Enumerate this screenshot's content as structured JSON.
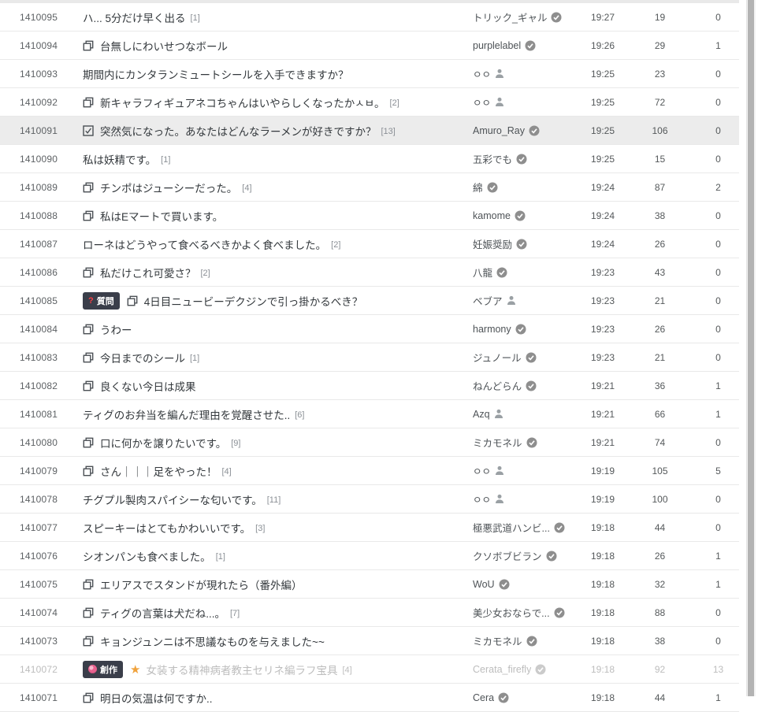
{
  "colors": {
    "highlight_row_bg": "#ececec",
    "visited_text": "#bdbdbd",
    "badge_bg": "#3a3e4a",
    "badge_question_mark": "#fb3e44",
    "star": "#f0a23c",
    "verified_badge": "#8e8e8e",
    "divider": "#e9e9e9",
    "title_text": "#33383c"
  },
  "table": {
    "rows": [
      {
        "id": "1410095",
        "icon": null,
        "badge": null,
        "star": false,
        "title": "ハ... 5分だけ早く出る",
        "count_label": "[1]",
        "author": "トリック_ギャル",
        "author_mark": "verified",
        "time": "19:27",
        "views": "19",
        "rating": "0",
        "state": "normal"
      },
      {
        "id": "1410094",
        "icon": "image",
        "badge": null,
        "star": false,
        "title": "台無しにわいせつなボール",
        "count_label": "",
        "author": "purplelabel",
        "author_mark": "verified",
        "time": "19:26",
        "views": "29",
        "rating": "1",
        "state": "normal"
      },
      {
        "id": "1410093",
        "icon": null,
        "badge": null,
        "star": false,
        "title": "期間内にカンタランミュートシールを入手できますか？",
        "count_label": "",
        "author": "ㅇㅇ",
        "author_mark": "person",
        "time": "19:25",
        "views": "23",
        "rating": "0",
        "state": "normal"
      },
      {
        "id": "1410092",
        "icon": "image",
        "badge": null,
        "star": false,
        "title": "新キャラフィギュアネコちゃんはいやらしくなったかㅅㅂ。",
        "count_label": "[2]",
        "author": "ㅇㅇ",
        "author_mark": "person",
        "time": "19:25",
        "views": "72",
        "rating": "0",
        "state": "normal"
      },
      {
        "id": "1410091",
        "icon": "checkbox",
        "badge": null,
        "star": false,
        "title": "突然気になった。あなたはどんなラーメンが好きですか？",
        "count_label": "[13]",
        "author": "Amuro_Ray",
        "author_mark": "verified",
        "time": "19:25",
        "views": "106",
        "rating": "0",
        "state": "highlighted"
      },
      {
        "id": "1410090",
        "icon": null,
        "badge": null,
        "star": false,
        "title": "私は妖精です。",
        "count_label": "[1]",
        "author": "五彩でも",
        "author_mark": "verified",
        "time": "19:25",
        "views": "15",
        "rating": "0",
        "state": "normal"
      },
      {
        "id": "1410089",
        "icon": "image",
        "badge": null,
        "star": false,
        "title": "チンポはジューシーだった。",
        "count_label": "[4]",
        "author": "綿",
        "author_mark": "verified",
        "time": "19:24",
        "views": "87",
        "rating": "2",
        "state": "normal"
      },
      {
        "id": "1410088",
        "icon": "image",
        "badge": null,
        "star": false,
        "title": "私はEマートで買います。",
        "count_label": "",
        "author": "kamome",
        "author_mark": "verified",
        "time": "19:24",
        "views": "38",
        "rating": "0",
        "state": "normal"
      },
      {
        "id": "1410087",
        "icon": null,
        "badge": null,
        "star": false,
        "title": "ローネはどうやって食べるべきかよく食べました。",
        "count_label": "[2]",
        "author": "妊娠奨励",
        "author_mark": "verified",
        "time": "19:24",
        "views": "26",
        "rating": "0",
        "state": "normal"
      },
      {
        "id": "1410086",
        "icon": "image",
        "badge": null,
        "star": false,
        "title": "私だけこれ可愛さ？",
        "count_label": "[2]",
        "author": "八龍",
        "author_mark": "verified",
        "time": "19:23",
        "views": "43",
        "rating": "0",
        "state": "normal"
      },
      {
        "id": "1410085",
        "icon": "image",
        "badge": {
          "label": "質問",
          "icon": "question"
        },
        "star": false,
        "title": "4日目ニュービーデクジンで引っ掛かるべき？",
        "count_label": "",
        "author": "ベブア",
        "author_mark": "person",
        "time": "19:23",
        "views": "21",
        "rating": "0",
        "state": "normal"
      },
      {
        "id": "1410084",
        "icon": "image",
        "badge": null,
        "star": false,
        "title": "うわー",
        "count_label": "",
        "author": "harmony",
        "author_mark": "verified",
        "time": "19:23",
        "views": "26",
        "rating": "0",
        "state": "normal"
      },
      {
        "id": "1410083",
        "icon": "image",
        "badge": null,
        "star": false,
        "title": "今日までのシール",
        "count_label": "[1]",
        "author": "ジュノール",
        "author_mark": "verified",
        "time": "19:23",
        "views": "21",
        "rating": "0",
        "state": "normal"
      },
      {
        "id": "1410082",
        "icon": "image",
        "badge": null,
        "star": false,
        "title": "良くない今日は成果",
        "count_label": "",
        "author": "ねんどらん",
        "author_mark": "verified",
        "time": "19:21",
        "views": "36",
        "rating": "1",
        "state": "normal"
      },
      {
        "id": "1410081",
        "icon": null,
        "badge": null,
        "star": false,
        "title": "ティグのお弁当を編んだ理由を覚醒させた..",
        "count_label": "[6]",
        "author": "Azq",
        "author_mark": "person",
        "time": "19:21",
        "views": "66",
        "rating": "1",
        "state": "normal"
      },
      {
        "id": "1410080",
        "icon": "image",
        "badge": null,
        "star": false,
        "title": "口に何かを譲りたいです。",
        "count_label": "[9]",
        "author": "ミカモネル",
        "author_mark": "verified",
        "time": "19:21",
        "views": "74",
        "rating": "0",
        "state": "normal"
      },
      {
        "id": "1410079",
        "icon": "image",
        "badge": null,
        "star": false,
        "title": "さん｜｜｜足をやった！",
        "count_label": "[4]",
        "author": "ㅇㅇ",
        "author_mark": "person",
        "time": "19:19",
        "views": "105",
        "rating": "5",
        "state": "normal"
      },
      {
        "id": "1410078",
        "icon": null,
        "badge": null,
        "star": false,
        "title": "チグプル製肉スパイシーな匂いです。",
        "count_label": "[11]",
        "author": "ㅇㅇ",
        "author_mark": "person",
        "time": "19:19",
        "views": "100",
        "rating": "0",
        "state": "normal"
      },
      {
        "id": "1410077",
        "icon": null,
        "badge": null,
        "star": false,
        "title": "スピーキーはとてもかわいいです。",
        "count_label": "[3]",
        "author": "極悪武道ハンビ...",
        "author_mark": "verified",
        "time": "19:18",
        "views": "44",
        "rating": "0",
        "state": "normal"
      },
      {
        "id": "1410076",
        "icon": null,
        "badge": null,
        "star": false,
        "title": "シオンパンも食べました。",
        "count_label": "[1]",
        "author": "クソボブビラン",
        "author_mark": "verified",
        "time": "19:18",
        "views": "26",
        "rating": "1",
        "state": "normal"
      },
      {
        "id": "1410075",
        "icon": "image",
        "badge": null,
        "star": false,
        "title": "エリアスでスタンドが現れたら（番外編）",
        "count_label": "",
        "author": "WoU",
        "author_mark": "verified",
        "time": "19:18",
        "views": "32",
        "rating": "1",
        "state": "normal"
      },
      {
        "id": "1410074",
        "icon": "image",
        "badge": null,
        "star": false,
        "title": "ティグの言葉は犬だね...。",
        "count_label": "[7]",
        "author": "美少女おならで...",
        "author_mark": "verified",
        "time": "19:18",
        "views": "88",
        "rating": "0",
        "state": "normal"
      },
      {
        "id": "1410073",
        "icon": "image",
        "badge": null,
        "star": false,
        "title": "キョンジュンニは不思議なものを与えました~~",
        "count_label": "",
        "author": "ミカモネル",
        "author_mark": "verified",
        "time": "19:18",
        "views": "38",
        "rating": "0",
        "state": "normal"
      },
      {
        "id": "1410072",
        "icon": null,
        "badge": {
          "label": "創作",
          "icon": "palette"
        },
        "star": true,
        "title": "女装する精神病者教主セリネ編ラフ宝具",
        "count_label": "[4]",
        "author": "Cerata_firefly",
        "author_mark": "verified",
        "time": "19:18",
        "views": "92",
        "rating": "13",
        "state": "visited"
      },
      {
        "id": "1410071",
        "icon": "image",
        "badge": null,
        "star": false,
        "title": "明日の気温は何ですか..",
        "count_label": "",
        "author": "Cera",
        "author_mark": "verified",
        "time": "19:18",
        "views": "44",
        "rating": "1",
        "state": "partial"
      }
    ]
  }
}
